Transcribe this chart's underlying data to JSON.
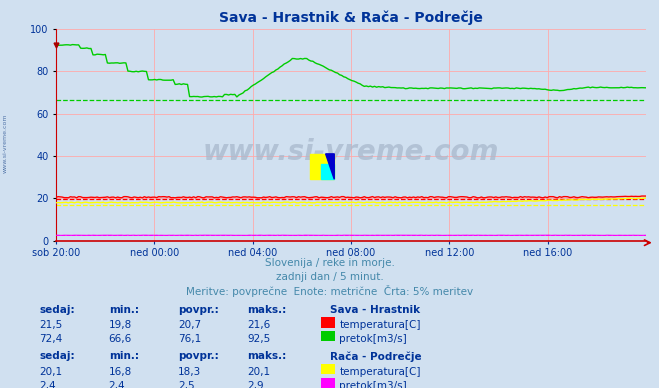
{
  "title": "Sava - Hrastnik & Rača - Podrečje",
  "bg_color": "#d0e0f0",
  "plot_bg_color": "#d0e0f0",
  "xlabel_ticks": [
    "sob 20:00",
    "ned 00:00",
    "ned 04:00",
    "ned 08:00",
    "ned 12:00",
    "ned 16:00"
  ],
  "ylim": [
    0,
    100
  ],
  "yticks": [
    0,
    20,
    40,
    60,
    80,
    100
  ],
  "subtitle_lines": [
    "Slovenija / reke in morje.",
    "zadnji dan / 5 minut.",
    "Meritve: povprečne  Enote: metrične  Črta: 5% meritev"
  ],
  "watermark": "www.si-vreme.com",
  "watermark_color": "#a8b8cc",
  "sidebar_text": "www.si-vreme.com",
  "table_header": [
    "sedaj:",
    "min.:",
    "povpr.:",
    "maks.:"
  ],
  "station1_name": "Sava - Hrastnik",
  "station1_rows": [
    {
      "sedaj": "21,5",
      "min": "19,8",
      "povpr": "20,7",
      "maks": "21,6",
      "color": "#ff0000",
      "label": "temperatura[C]"
    },
    {
      "sedaj": "72,4",
      "min": "66,6",
      "povpr": "76,1",
      "maks": "92,5",
      "color": "#00cc00",
      "label": "pretok[m3/s]"
    }
  ],
  "station2_name": "Rača - Podrečje",
  "station2_rows": [
    {
      "sedaj": "20,1",
      "min": "16,8",
      "povpr": "18,3",
      "maks": "20,1",
      "color": "#ffff00",
      "label": "temperatura[C]"
    },
    {
      "sedaj": "2,4",
      "min": "2,4",
      "povpr": "2,5",
      "maks": "2,9",
      "color": "#ff00ff",
      "label": "pretok[m3/s]"
    }
  ],
  "n_points": 288,
  "text_color": "#003399",
  "subtitle_color": "#4488aa",
  "grid_color": "#ffaaaa",
  "axis_color": "#cc0000",
  "sava_flow_5pct": 66.6,
  "sava_temp_5pct": 19.8,
  "raca_temp_5pct": 16.8,
  "raca_flow_5pct": 2.4
}
